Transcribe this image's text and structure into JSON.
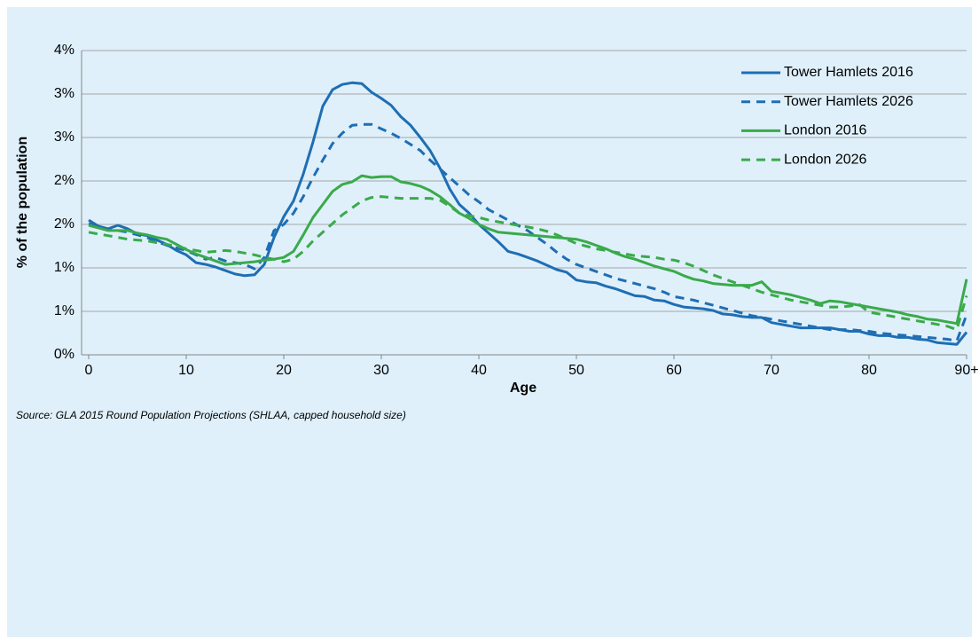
{
  "chart_data": {
    "type": "line",
    "xlabel": "Age",
    "ylabel": "% of the population",
    "source": "Source: GLA 2015 Round Population Projections (SHLAA, capped household size)",
    "x": [
      0,
      1,
      2,
      3,
      4,
      5,
      6,
      7,
      8,
      9,
      10,
      11,
      12,
      13,
      14,
      15,
      16,
      17,
      18,
      19,
      20,
      21,
      22,
      23,
      24,
      25,
      26,
      27,
      28,
      29,
      30,
      31,
      32,
      33,
      34,
      35,
      36,
      37,
      38,
      39,
      40,
      41,
      42,
      43,
      44,
      45,
      46,
      47,
      48,
      49,
      50,
      51,
      52,
      53,
      54,
      55,
      56,
      57,
      58,
      59,
      60,
      61,
      62,
      63,
      64,
      65,
      66,
      67,
      68,
      69,
      70,
      71,
      72,
      73,
      74,
      75,
      76,
      77,
      78,
      79,
      80,
      81,
      82,
      83,
      84,
      85,
      86,
      87,
      88,
      89,
      90
    ],
    "xlim": [
      0,
      90
    ],
    "xticks": [
      0,
      10,
      20,
      30,
      40,
      50,
      60,
      70,
      80,
      {
        "value": 90,
        "label": "90+"
      }
    ],
    "ylim": [
      0,
      3.5
    ],
    "yticks": [
      {
        "value": 0,
        "label": "0%"
      },
      {
        "value": 0.5,
        "label": "1%"
      },
      {
        "value": 1,
        "label": "1%"
      },
      {
        "value": 1.5,
        "label": "2%"
      },
      {
        "value": 2,
        "label": "2%"
      },
      {
        "value": 2.5,
        "label": "3%"
      },
      {
        "value": 3,
        "label": "3%"
      },
      {
        "value": 3.5,
        "label": "4%"
      }
    ],
    "grid": true,
    "legend": "top-right",
    "series": [
      {
        "name": "Tower Hamlets 2016",
        "color": "#1f6eb3",
        "dash": "solid",
        "values": [
          1.55,
          1.48,
          1.45,
          1.49,
          1.45,
          1.39,
          1.37,
          1.32,
          1.27,
          1.2,
          1.15,
          1.06,
          1.04,
          1.01,
          0.97,
          0.93,
          0.91,
          0.92,
          1.04,
          1.35,
          1.59,
          1.77,
          2.08,
          2.45,
          2.86,
          3.05,
          3.11,
          3.13,
          3.12,
          3.02,
          2.95,
          2.87,
          2.74,
          2.64,
          2.5,
          2.35,
          2.15,
          1.91,
          1.73,
          1.63,
          1.5,
          1.4,
          1.3,
          1.19,
          1.16,
          1.12,
          1.08,
          1.03,
          0.98,
          0.95,
          0.86,
          0.84,
          0.83,
          0.79,
          0.76,
          0.72,
          0.68,
          0.67,
          0.63,
          0.62,
          0.58,
          0.55,
          0.54,
          0.53,
          0.51,
          0.47,
          0.46,
          0.44,
          0.43,
          0.43,
          0.37,
          0.35,
          0.33,
          0.31,
          0.31,
          0.31,
          0.31,
          0.29,
          0.27,
          0.27,
          0.24,
          0.22,
          0.22,
          0.2,
          0.2,
          0.18,
          0.17,
          0.14,
          0.13,
          0.12,
          0.26
        ]
      },
      {
        "name": "Tower Hamlets 2026",
        "color": "#1f6eb3",
        "dash": "dashed",
        "values": [
          1.51,
          1.47,
          1.44,
          1.43,
          1.41,
          1.38,
          1.35,
          1.3,
          1.26,
          1.23,
          1.2,
          1.15,
          1.1,
          1.12,
          1.08,
          1.06,
          1.04,
          0.99,
          1.12,
          1.43,
          1.5,
          1.63,
          1.82,
          2.04,
          2.24,
          2.43,
          2.55,
          2.64,
          2.65,
          2.65,
          2.6,
          2.55,
          2.49,
          2.42,
          2.35,
          2.24,
          2.14,
          2.04,
          1.94,
          1.84,
          1.76,
          1.67,
          1.61,
          1.55,
          1.49,
          1.43,
          1.35,
          1.27,
          1.18,
          1.1,
          1.04,
          1.0,
          0.96,
          0.92,
          0.88,
          0.85,
          0.82,
          0.79,
          0.76,
          0.72,
          0.67,
          0.65,
          0.63,
          0.6,
          0.57,
          0.54,
          0.51,
          0.48,
          0.45,
          0.43,
          0.41,
          0.39,
          0.37,
          0.35,
          0.33,
          0.31,
          0.29,
          0.29,
          0.29,
          0.28,
          0.27,
          0.25,
          0.24,
          0.23,
          0.22,
          0.21,
          0.2,
          0.19,
          0.18,
          0.16,
          0.46
        ]
      },
      {
        "name": "London 2016",
        "color": "#3aaa4a",
        "dash": "solid",
        "values": [
          1.49,
          1.46,
          1.43,
          1.43,
          1.43,
          1.4,
          1.38,
          1.35,
          1.33,
          1.27,
          1.21,
          1.16,
          1.12,
          1.08,
          1.04,
          1.05,
          1.06,
          1.07,
          1.09,
          1.1,
          1.12,
          1.19,
          1.38,
          1.58,
          1.73,
          1.88,
          1.96,
          1.99,
          2.06,
          2.04,
          2.05,
          2.05,
          1.99,
          1.97,
          1.94,
          1.89,
          1.82,
          1.73,
          1.63,
          1.57,
          1.5,
          1.45,
          1.41,
          1.4,
          1.39,
          1.38,
          1.37,
          1.36,
          1.35,
          1.34,
          1.33,
          1.3,
          1.26,
          1.22,
          1.17,
          1.13,
          1.1,
          1.06,
          1.02,
          0.99,
          0.96,
          0.91,
          0.87,
          0.85,
          0.82,
          0.81,
          0.8,
          0.8,
          0.8,
          0.84,
          0.73,
          0.71,
          0.69,
          0.66,
          0.63,
          0.59,
          0.62,
          0.61,
          0.59,
          0.57,
          0.55,
          0.53,
          0.51,
          0.49,
          0.46,
          0.44,
          0.41,
          0.4,
          0.38,
          0.36,
          0.87
        ]
      },
      {
        "name": "London 2026",
        "color": "#3aaa4a",
        "dash": "dashed",
        "values": [
          1.41,
          1.39,
          1.37,
          1.35,
          1.33,
          1.32,
          1.31,
          1.29,
          1.27,
          1.25,
          1.22,
          1.2,
          1.18,
          1.19,
          1.2,
          1.19,
          1.17,
          1.15,
          1.12,
          1.1,
          1.07,
          1.1,
          1.19,
          1.31,
          1.41,
          1.51,
          1.61,
          1.69,
          1.77,
          1.81,
          1.82,
          1.81,
          1.8,
          1.8,
          1.8,
          1.8,
          1.78,
          1.71,
          1.63,
          1.6,
          1.58,
          1.55,
          1.53,
          1.51,
          1.49,
          1.47,
          1.45,
          1.42,
          1.38,
          1.33,
          1.28,
          1.25,
          1.22,
          1.2,
          1.18,
          1.16,
          1.14,
          1.13,
          1.12,
          1.1,
          1.09,
          1.06,
          1.02,
          0.97,
          0.92,
          0.88,
          0.84,
          0.8,
          0.76,
          0.72,
          0.69,
          0.66,
          0.63,
          0.61,
          0.59,
          0.57,
          0.55,
          0.55,
          0.56,
          0.58,
          0.49,
          0.47,
          0.45,
          0.43,
          0.41,
          0.39,
          0.37,
          0.35,
          0.33,
          0.29,
          0.68
        ]
      }
    ]
  }
}
